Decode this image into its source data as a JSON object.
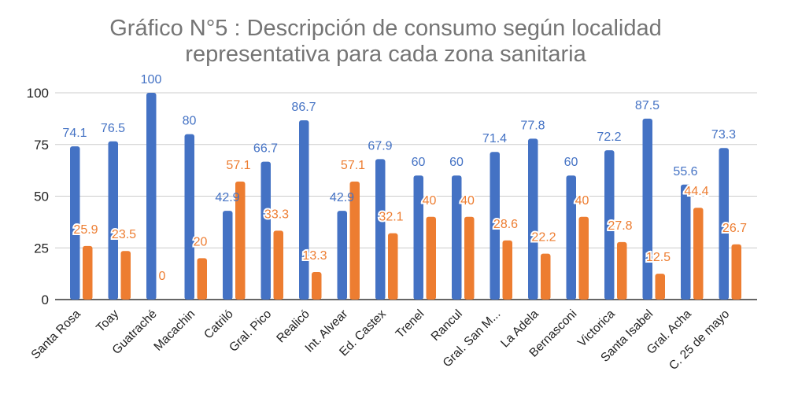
{
  "chart_data": {
    "type": "bar",
    "title": "Gráfico N°5 : Descripción de consumo según localidad representativa para cada zona sanitaria",
    "title_lines": [
      "Gráfico N°5 : Descripción de consumo según localidad",
      "representativa para cada zona sanitaria"
    ],
    "categories": [
      "Santa Rosa",
      "Toay",
      "Guatraché",
      "Macachin",
      "Catriló",
      "Gral. Pico",
      "Realicó",
      "Int. Alvear",
      "Ed. Castex",
      "Trenel",
      "Rancul",
      "Gral. San M...",
      "La Adela",
      "Bernasconi",
      "Victorica",
      "Santa Isabel",
      "Gral. Acha",
      "C. 25 de mayo"
    ],
    "series": [
      {
        "color": "#4472c4",
        "values": [
          74.1,
          76.5,
          100,
          80,
          42.9,
          66.7,
          86.7,
          42.9,
          67.9,
          60,
          60,
          71.4,
          77.8,
          60,
          72.2,
          87.5,
          55.6,
          73.3
        ]
      },
      {
        "color": "#ed7d31",
        "values": [
          25.9,
          23.5,
          0,
          20,
          57.1,
          33.3,
          13.3,
          57.1,
          32.1,
          40,
          40,
          28.6,
          22.2,
          40,
          27.8,
          12.5,
          44.4,
          26.7
        ]
      }
    ],
    "ylim": [
      0,
      100
    ],
    "yticks": [
      0,
      25,
      50,
      75,
      100
    ],
    "grid": true,
    "legend": "none",
    "data_labels": true
  }
}
